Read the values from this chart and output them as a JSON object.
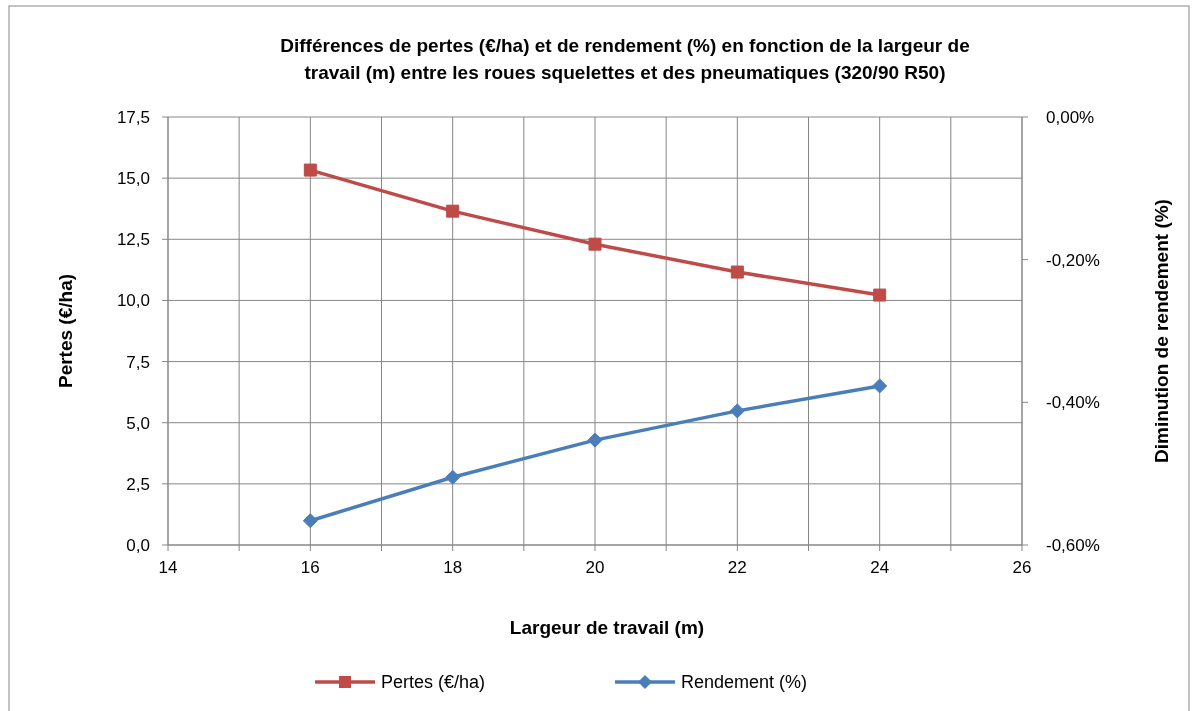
{
  "chart_data": {
    "type": "line",
    "title": "Différences de pertes (€/ha) et de rendement (%) en fonction de la largeur de travail (m) entre les roues squelettes et des pneumatiques (320/90 R50)",
    "xlabel": "Largeur de travail (m)",
    "ylabel": "Pertes (€/ha)",
    "y2label": "Diminution de rendement (%)",
    "x": [
      16,
      18,
      20,
      22,
      24
    ],
    "series": [
      {
        "name": "Pertes (€/ha)",
        "color": "#be4b48",
        "marker": "square",
        "values": [
          15.33,
          13.65,
          12.3,
          11.16,
          10.22
        ]
      },
      {
        "name": "Rendement (%)",
        "color": "#4a7ebb",
        "marker": "diamond",
        "axis": "y2",
        "values": [
          -0.566,
          -0.505,
          -0.453,
          -0.412,
          -0.377
        ]
      }
    ],
    "xlim": [
      14,
      26
    ],
    "xticks": [
      14,
      {
        "value": 15,
        "label": null
      },
      16,
      {
        "value": 17,
        "label": null
      },
      18,
      {
        "value": 19,
        "label": null
      },
      20,
      {
        "value": 21,
        "label": null
      },
      22,
      {
        "value": 23,
        "label": null
      },
      24,
      {
        "value": 25,
        "label": null
      },
      26
    ],
    "ylim": [
      0,
      17.5
    ],
    "yticks": [
      {
        "value": 0,
        "label": "0,0"
      },
      {
        "value": 2.5,
        "label": "2,5"
      },
      {
        "value": 5,
        "label": "5,0"
      },
      {
        "value": 7.5,
        "label": "7,5"
      },
      {
        "value": 10,
        "label": "10,0"
      },
      {
        "value": 12.5,
        "label": "12,5"
      },
      {
        "value": 15,
        "label": "15,0"
      },
      {
        "value": 17.5,
        "label": "17,5"
      }
    ],
    "y2lim": [
      -0.6,
      0
    ],
    "y2ticks": [
      {
        "value": -0.6,
        "label": "-0,60%"
      },
      {
        "value": -0.4,
        "label": "-0,40%"
      },
      {
        "value": -0.2,
        "label": "-0,20%"
      },
      {
        "value": 0,
        "label": "0,00%"
      }
    ],
    "grid": true,
    "legend": "bottom",
    "line_style": "solid"
  }
}
